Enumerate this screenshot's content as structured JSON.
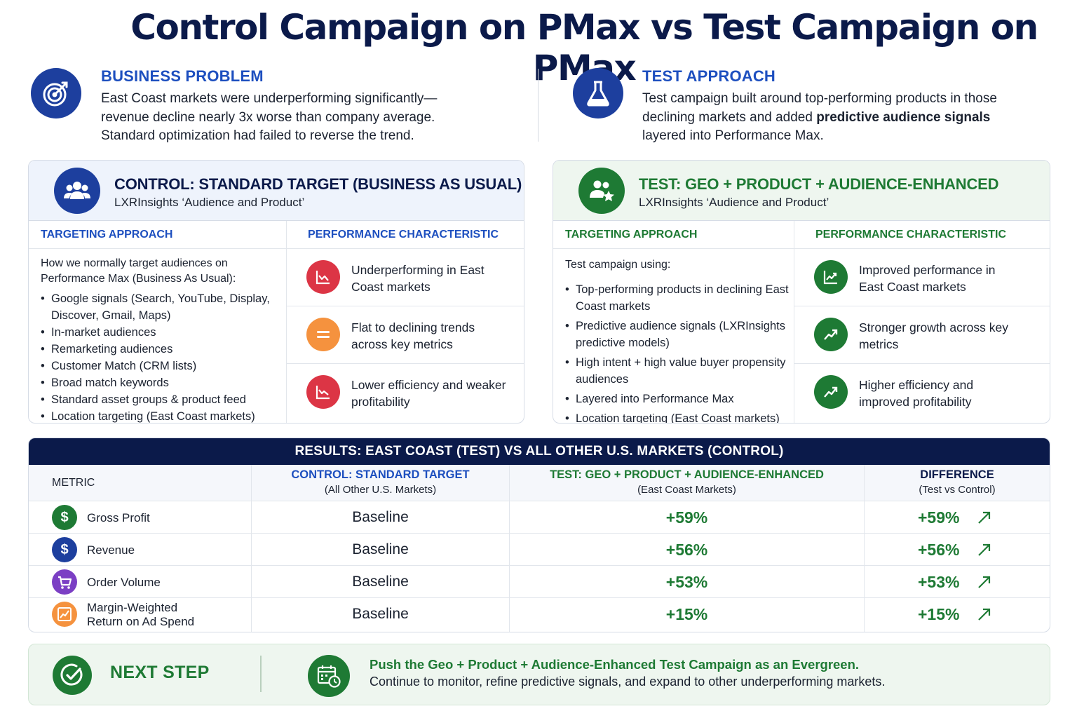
{
  "title": "Control Campaign on PMax vs Test Campaign on PMax",
  "business_problem": {
    "heading": "BUSINESS PROBLEM",
    "icon": "target-icon",
    "lines": [
      "East Coast markets were underperforming significantly—",
      "revenue decline nearly 3x worse than company average.",
      "Standard optimization had failed to reverse the trend."
    ]
  },
  "test_approach": {
    "heading": "TEST APPROACH",
    "icon": "flask-icon",
    "line1": "Test campaign built around top-performing products in those",
    "line2_pre": "declining markets and added ",
    "line2_bold": "predictive audience signals",
    "line3": "layered into Performance Max."
  },
  "control": {
    "title": "CONTROL: STANDARD TARGET (BUSINESS AS USUAL)",
    "subtitle": "LXRInsights ‘Audience and Product’",
    "icon": "users-icon",
    "targeting_header": "TARGETING APPROACH",
    "performance_header": "PERFORMANCE CHARACTERISTIC",
    "description": "How we normally target audiences on Performance Max (Business As Usual):",
    "bullets": [
      "Google signals (Search, YouTube, Display, Discover, Gmail, Maps)",
      "In-market audiences",
      "Remarketing audiences",
      "Customer Match (CRM lists)",
      "Broad match keywords",
      "Standard asset groups & product feed",
      "Location targeting (East Coast markets)"
    ],
    "performance": [
      {
        "icon": "chart-down-icon",
        "text": "Underperforming in East Coast markets"
      },
      {
        "icon": "equals-icon",
        "text": "Flat to declining trends across key metrics"
      },
      {
        "icon": "chart-dip-icon",
        "text": "Lower efficiency and weaker profitability"
      }
    ]
  },
  "test": {
    "title": "TEST: GEO + PRODUCT + AUDIENCE-ENHANCED",
    "subtitle": "LXRInsights ‘Audience and Product’",
    "icon": "users-star-icon",
    "targeting_header": "TARGETING APPROACH",
    "performance_header": "PERFORMANCE CHARACTERISTIC",
    "description": "Test campaign using:",
    "bullets": [
      "Top-performing products in declining East Coast markets",
      "Predictive audience signals (LXRInsights predictive models)",
      "High intent + high value buyer propensity audiences",
      "Layered into Performance Max",
      "Location targeting (East Coast markets)"
    ],
    "performance": [
      {
        "icon": "chart-up-icon",
        "text": "Improved performance in East Coast markets"
      },
      {
        "icon": "trend-up-icon",
        "text": "Stronger growth across key metrics"
      },
      {
        "icon": "trend-up-icon",
        "text": "Higher efficiency and improved profitability"
      }
    ]
  },
  "results": {
    "banner": "RESULTS: EAST COAST (TEST) VS ALL OTHER U.S. MARKETS (CONTROL)",
    "col_metric": "METRIC",
    "col_control": "CONTROL: STANDARD TARGET",
    "col_control_sub": "(All Other U.S. Markets)",
    "col_test": "TEST: GEO + PRODUCT + AUDIENCE-ENHANCED",
    "col_test_sub": "(East Coast Markets)",
    "col_diff": "DIFFERENCE",
    "col_diff_sub": "(Test vs Control)",
    "rows": [
      {
        "metric": "Gross Profit",
        "icon": "dollar-icon",
        "icon_glyph": "$",
        "color": "#1e7a34",
        "control": "Baseline",
        "test": "+59%",
        "diff": "+59%"
      },
      {
        "metric": "Revenue",
        "icon": "dollar-icon",
        "icon_glyph": "$",
        "color": "#1d3f9e",
        "control": "Baseline",
        "test": "+56%",
        "diff": "+56%"
      },
      {
        "metric": "Order Volume",
        "icon": "cart-icon",
        "icon_glyph": "",
        "color": "#7b3fc4",
        "control": "Baseline",
        "test": "+53%",
        "diff": "+53%"
      },
      {
        "metric_line1": "Margin-Weighted",
        "metric_line2": "Return on Ad Spend",
        "icon": "chart-up-icon",
        "icon_glyph": "",
        "color": "#f5923e",
        "control": "Baseline",
        "test": "+15%",
        "diff": "+15%"
      }
    ]
  },
  "next_step": {
    "label": "NEXT STEP",
    "icon": "check-circle-icon",
    "calendar_icon": "calendar-clock-icon",
    "headline": "Push the Geo + Product + Audience-Enhanced Test Campaign as an Evergreen.",
    "detail": "Continue to monitor, refine predictive signals, and expand to other underperforming markets."
  }
}
